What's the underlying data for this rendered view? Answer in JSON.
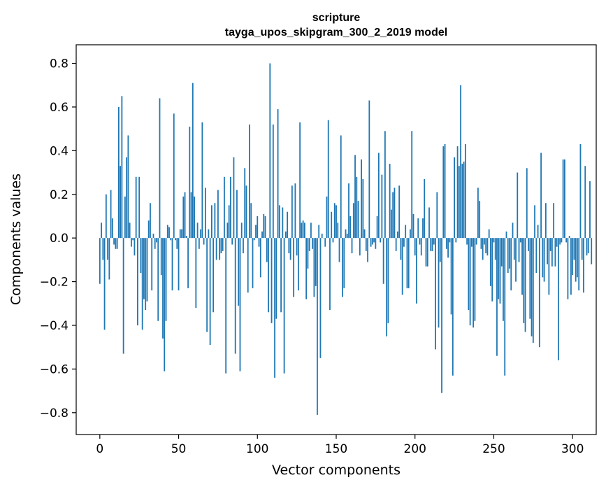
{
  "chart_data": {
    "type": "bar",
    "title": "scripture",
    "subtitle": "tayga_upos_skipgram_300_2_2019 model",
    "xlabel": "Vector components",
    "ylabel": "Components values",
    "xlim": [
      -15,
      315
    ],
    "ylim": [
      -0.9,
      0.885
    ],
    "xticks": [
      0,
      50,
      100,
      150,
      200,
      250,
      300
    ],
    "yticks": [
      -0.8,
      -0.6,
      -0.4,
      -0.2,
      0.0,
      0.2,
      0.4,
      0.6,
      0.8
    ],
    "ytick_labels": [
      "−0.8",
      "−0.6",
      "−0.4",
      "−0.2",
      "0.0",
      "0.2",
      "0.4",
      "0.6",
      "0.8"
    ],
    "bar_color": "#1f77b4",
    "grid": false,
    "values": [
      -0.21,
      0.07,
      -0.1,
      -0.42,
      0.2,
      -0.1,
      -0.19,
      0.22,
      0.09,
      -0.03,
      -0.05,
      -0.05,
      0.6,
      0.33,
      0.65,
      -0.53,
      0.19,
      0.37,
      0.47,
      0.07,
      -0.04,
      -0.01,
      -0.08,
      0.28,
      -0.4,
      0.28,
      -0.16,
      -0.42,
      -0.28,
      -0.33,
      -0.29,
      0.08,
      0.16,
      -0.24,
      0.02,
      -0.05,
      -0.02,
      -0.38,
      0.64,
      -0.17,
      -0.46,
      -0.61,
      -0.38,
      0.06,
      0.05,
      -0.01,
      -0.24,
      0.57,
      -0.01,
      -0.05,
      -0.24,
      0.04,
      0.04,
      0.19,
      0.21,
      0.01,
      -0.23,
      0.51,
      0.21,
      0.71,
      0.19,
      -0.32,
      0.07,
      -0.05,
      0.04,
      0.53,
      -0.03,
      0.23,
      -0.43,
      0.04,
      -0.49,
      0.15,
      -0.34,
      0.16,
      -0.1,
      0.22,
      -0.1,
      -0.07,
      -0.06,
      0.28,
      -0.62,
      0.07,
      0.15,
      0.28,
      -0.03,
      0.37,
      -0.53,
      0.22,
      -0.31,
      -0.61,
      0.07,
      -0.07,
      0.32,
      0.24,
      -0.25,
      0.52,
      0.16,
      -0.23,
      -0.01,
      0.06,
      0.1,
      -0.04,
      -0.18,
      0.03,
      0.11,
      0.1,
      -0.11,
      -0.34,
      0.8,
      -0.39,
      0.52,
      -0.64,
      -0.37,
      0.59,
      0.15,
      -0.34,
      0.14,
      -0.62,
      0.03,
      0.12,
      -0.07,
      -0.1,
      0.24,
      -0.27,
      0.25,
      -0.08,
      -0.24,
      0.53,
      0.07,
      0.08,
      0.07,
      -0.28,
      -0.14,
      -0.06,
      0.07,
      -0.05,
      -0.27,
      -0.22,
      -0.81,
      0.06,
      -0.55,
      0.02,
      0.0,
      -0.04,
      0.19,
      0.54,
      -0.33,
      0.12,
      -0.02,
      0.16,
      0.15,
      0.07,
      -0.11,
      0.47,
      -0.27,
      -0.23,
      0.04,
      0.02,
      0.25,
      0.1,
      -0.07,
      0.16,
      0.38,
      0.28,
      0.17,
      -0.08,
      0.36,
      0.27,
      0.04,
      -0.06,
      -0.11,
      0.63,
      -0.04,
      -0.03,
      -0.02,
      -0.05,
      0.1,
      0.39,
      -0.02,
      0.29,
      -0.21,
      0.49,
      -0.45,
      -0.39,
      0.34,
      0.13,
      0.21,
      0.23,
      -0.06,
      0.03,
      0.24,
      -0.1,
      -0.26,
      -0.04,
      0.06,
      -0.23,
      -0.23,
      0.04,
      0.49,
      0.11,
      -0.08,
      -0.3,
      0.09,
      -0.03,
      -0.08,
      0.09,
      0.27,
      -0.13,
      -0.13,
      0.14,
      -0.06,
      -0.06,
      -0.03,
      -0.51,
      0.21,
      -0.41,
      -0.11,
      -0.71,
      0.42,
      0.43,
      -0.05,
      -0.09,
      -0.02,
      -0.35,
      -0.63,
      0.37,
      -0.02,
      0.42,
      0.33,
      0.7,
      0.34,
      0.35,
      0.43,
      -0.03,
      -0.33,
      -0.4,
      -0.04,
      -0.41,
      -0.38,
      -0.03,
      0.23,
      0.17,
      -0.05,
      -0.1,
      -0.03,
      -0.07,
      -0.08,
      0.04,
      -0.22,
      -0.29,
      -0.02,
      -0.1,
      -0.54,
      -0.28,
      -0.3,
      -0.13,
      -0.38,
      -0.63,
      0.03,
      -0.16,
      -0.14,
      -0.24,
      0.07,
      -0.1,
      -0.2,
      0.3,
      -0.11,
      -0.02,
      -0.26,
      -0.39,
      -0.43,
      0.32,
      -0.06,
      -0.37,
      -0.45,
      -0.48,
      0.15,
      -0.16,
      0.06,
      -0.5,
      0.39,
      -0.18,
      -0.2,
      0.16,
      -0.12,
      -0.26,
      -0.06,
      -0.13,
      0.16,
      -0.13,
      -0.04,
      -0.56,
      -0.03,
      -0.02,
      0.36,
      0.36,
      -0.02,
      -0.28,
      0.01,
      -0.26,
      -0.17,
      -0.1,
      -0.2,
      -0.18,
      -0.24,
      0.43,
      -0.1,
      -0.25,
      0.33,
      -0.08,
      -0.07,
      0.26,
      -0.12
    ]
  }
}
